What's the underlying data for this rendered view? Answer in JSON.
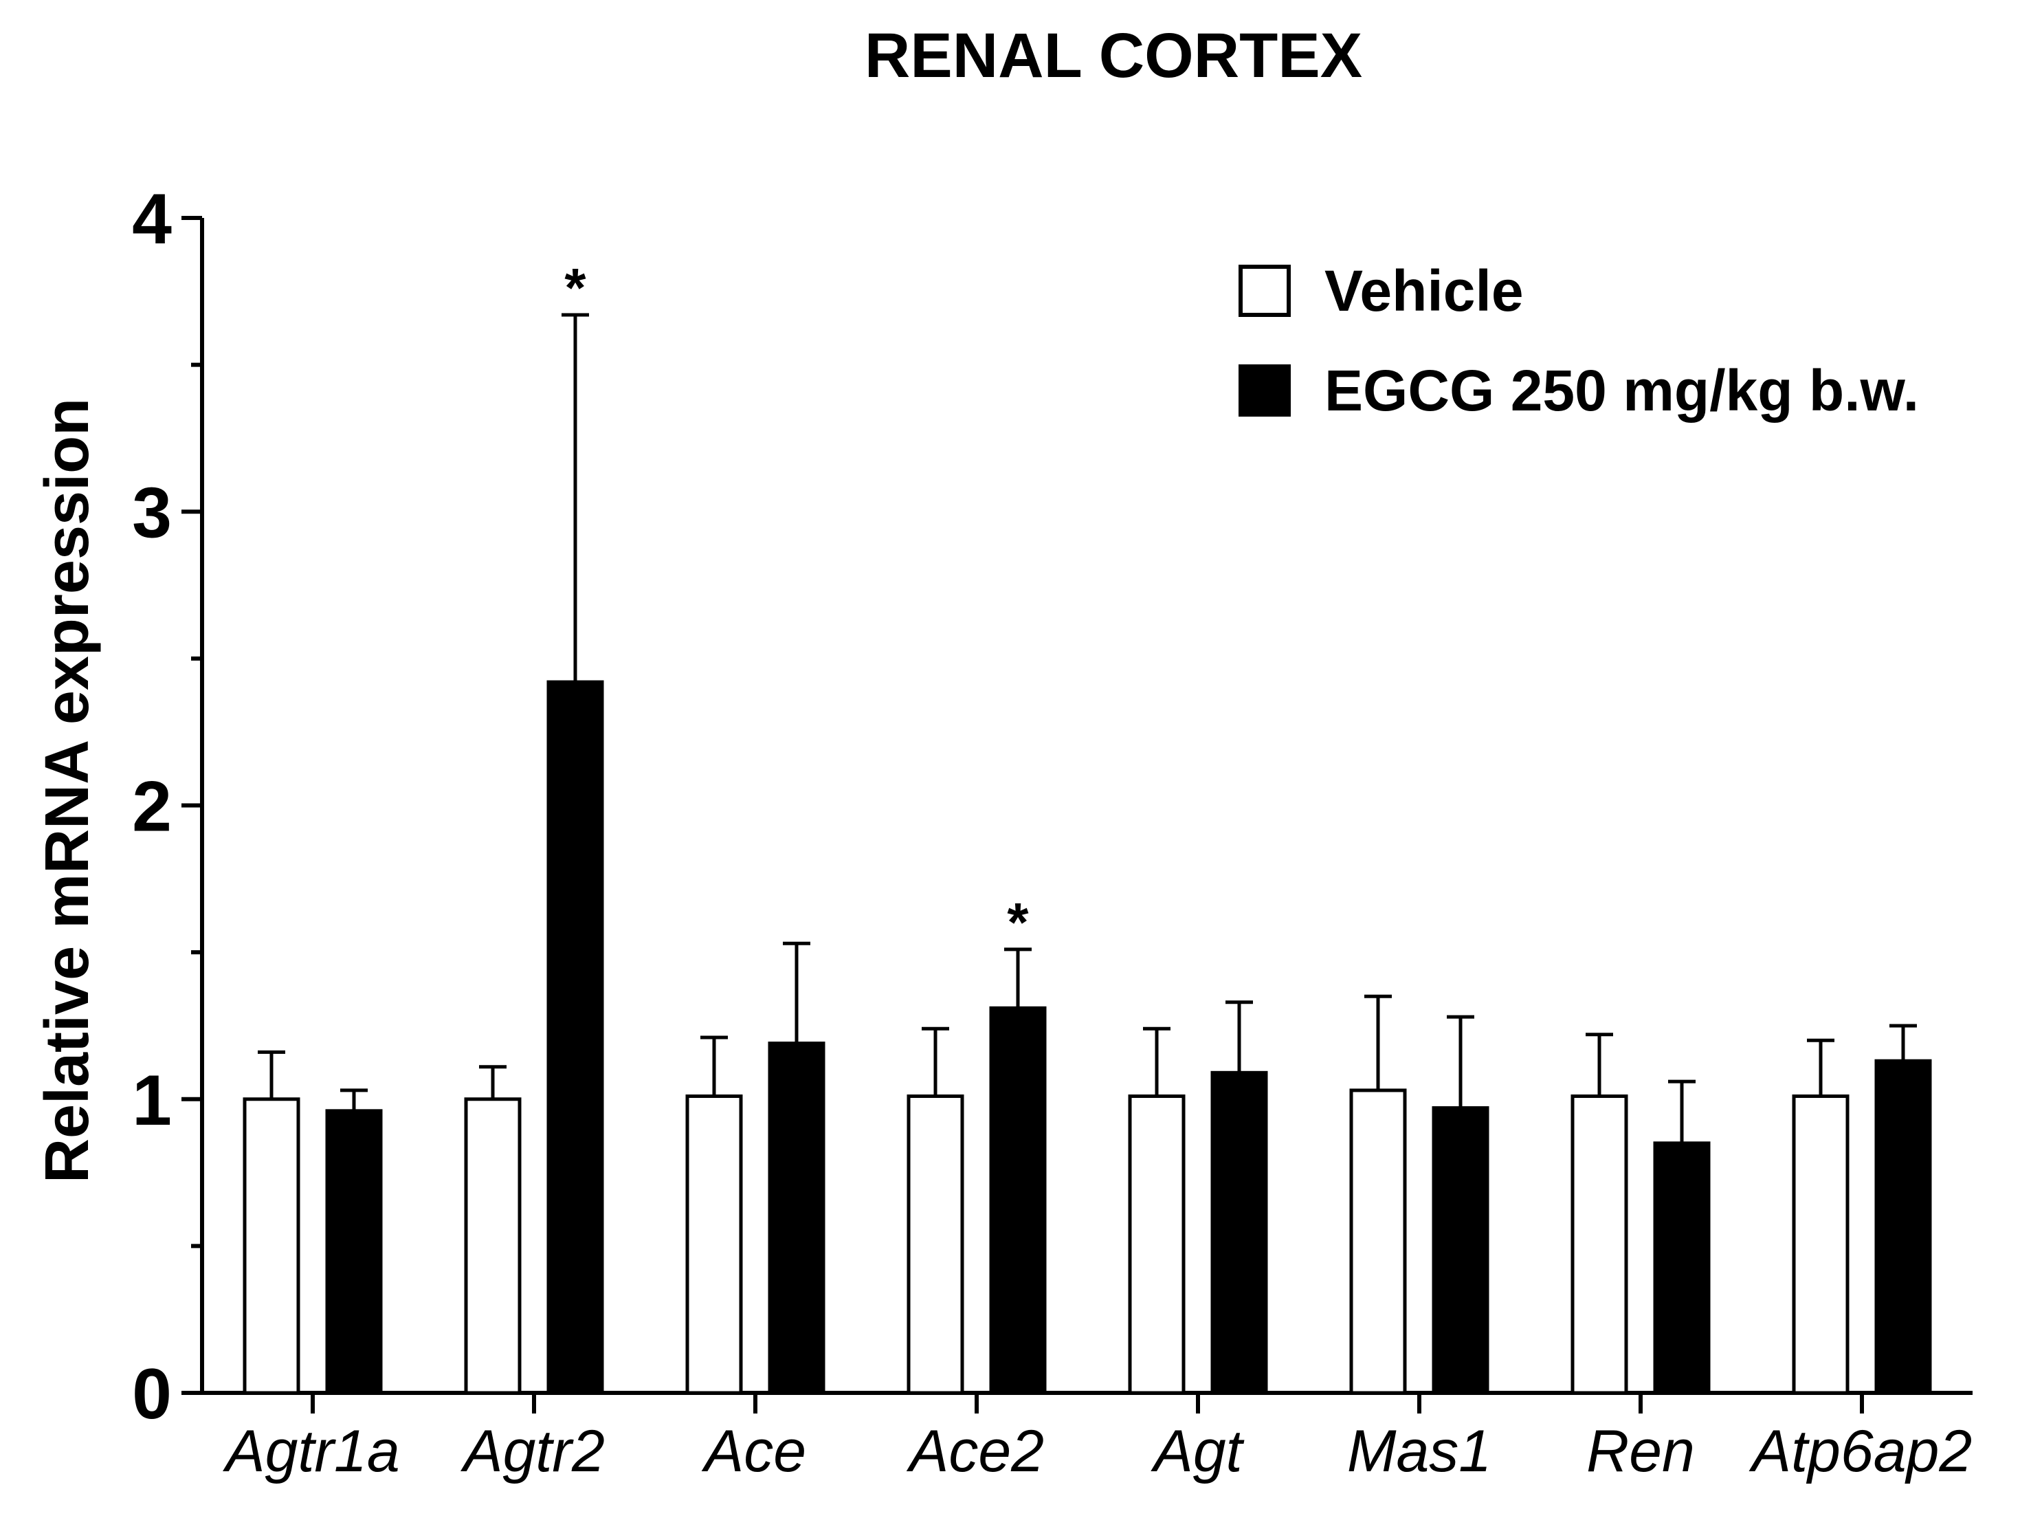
{
  "chart_data": {
    "type": "bar",
    "title": "RENAL CORTEX",
    "xlabel": "",
    "ylabel": "Relative mRNA expression",
    "ylim": [
      0,
      4
    ],
    "yticks": [
      "0",
      "1",
      "2",
      "3",
      "4"
    ],
    "categories": [
      "Agtr1a",
      "Agtr2",
      "Ace",
      "Ace2",
      "Agt",
      "Mas1",
      "Ren",
      "Atp6ap2"
    ],
    "series": [
      {
        "name": "Vehicle",
        "fill": "#ffffff",
        "values": [
          1.0,
          1.0,
          1.01,
          1.01,
          1.01,
          1.03,
          1.01,
          1.01
        ],
        "errors": [
          0.16,
          0.11,
          0.2,
          0.23,
          0.23,
          0.32,
          0.21,
          0.19
        ]
      },
      {
        "name": "EGCG 250 mg/kg b.w.",
        "fill": "#000000",
        "values": [
          0.96,
          2.42,
          1.19,
          1.31,
          1.09,
          0.97,
          0.85,
          1.13
        ],
        "errors": [
          0.07,
          1.25,
          0.34,
          0.2,
          0.24,
          0.31,
          0.21,
          0.12
        ]
      }
    ],
    "annotations": [
      {
        "text": "*",
        "category": "Agtr2",
        "series": "EGCG 250 mg/kg b.w."
      },
      {
        "text": "*",
        "category": "Ace2",
        "series": "EGCG 250 mg/kg b.w."
      }
    ],
    "legend_position": "top-right",
    "grid": false
  }
}
